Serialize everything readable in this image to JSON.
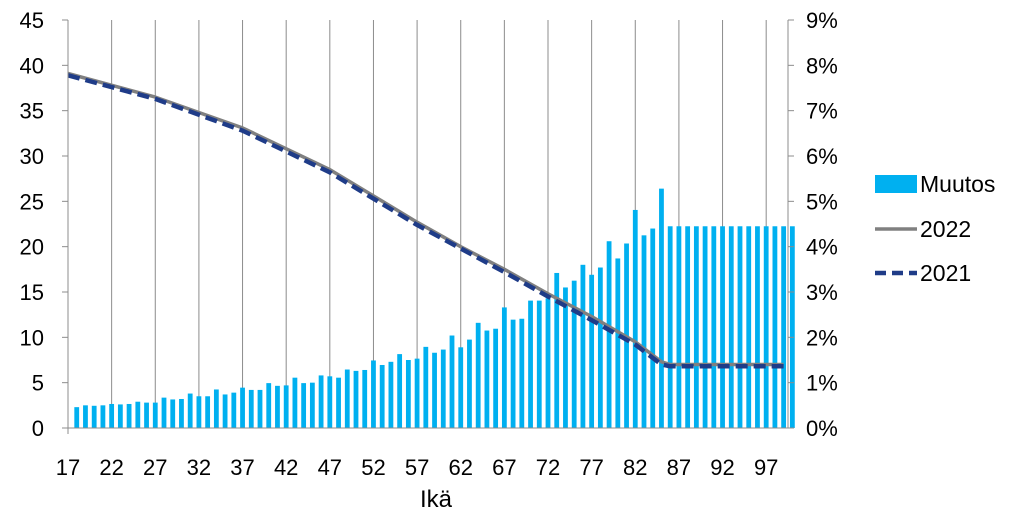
{
  "chart_data": {
    "type": "bar",
    "xlabel": "Ikä",
    "x_start": 17,
    "x_end": 99,
    "x_tick_labels": [
      "17",
      "22",
      "27",
      "32",
      "37",
      "42",
      "47",
      "52",
      "57",
      "62",
      "67",
      "72",
      "77",
      "82",
      "87",
      "92",
      "97"
    ],
    "y_left": {
      "min": 0,
      "max": 45,
      "tick_labels": [
        "0",
        "5",
        "10",
        "15",
        "20",
        "25",
        "30",
        "35",
        "40",
        "45"
      ]
    },
    "y_right": {
      "min": 0,
      "max": 9,
      "tick_labels": [
        "0%",
        "1%",
        "2%",
        "3%",
        "4%",
        "5%",
        "6%",
        "7%",
        "8%",
        "9%"
      ]
    },
    "grid": "vertical",
    "legend_position": "right",
    "colors": {
      "bars": "#00B0F0",
      "line_2022": "#808080",
      "line_2021": "#1F3C88"
    },
    "series": [
      {
        "name": "Muutos",
        "kind": "bar",
        "axis": "right",
        "values": [
          0.46,
          0.5,
          0.49,
          0.5,
          0.53,
          0.52,
          0.53,
          0.58,
          0.56,
          0.56,
          0.67,
          0.63,
          0.64,
          0.76,
          0.7,
          0.7,
          0.85,
          0.74,
          0.78,
          0.89,
          0.84,
          0.84,
          0.99,
          0.93,
          0.94,
          1.11,
          0.99,
          1.0,
          1.16,
          1.14,
          1.11,
          1.29,
          1.26,
          1.28,
          1.49,
          1.39,
          1.46,
          1.63,
          1.5,
          1.53,
          1.79,
          1.66,
          1.73,
          2.04,
          1.78,
          1.95,
          2.32,
          2.15,
          2.19,
          2.66,
          2.39,
          2.41,
          2.81,
          2.81,
          2.86,
          3.42,
          3.1,
          3.25,
          3.6,
          3.38,
          3.54,
          4.12,
          3.74,
          4.07,
          4.81,
          4.25,
          4.4,
          5.28,
          4.45,
          4.45,
          4.45,
          4.45,
          4.45,
          4.45,
          4.45,
          4.45,
          4.45,
          4.45,
          4.45,
          4.45,
          4.45,
          4.45,
          4.45
        ]
      },
      {
        "name": "2022",
        "kind": "line",
        "axis": "left",
        "points": [
          [
            17,
            39.1
          ],
          [
            27,
            36.5
          ],
          [
            37,
            33.1
          ],
          [
            47,
            28.5
          ],
          [
            57,
            22.7
          ],
          [
            62,
            20.0
          ],
          [
            67,
            17.5
          ],
          [
            72,
            14.8
          ],
          [
            77,
            12.3
          ],
          [
            82,
            9.5
          ],
          [
            85,
            7.3
          ],
          [
            86,
            7.0
          ],
          [
            99,
            7.0
          ]
        ]
      },
      {
        "name": "2021",
        "kind": "line",
        "axis": "left",
        "points": [
          [
            17,
            38.9
          ],
          [
            27,
            36.3
          ],
          [
            37,
            32.8
          ],
          [
            47,
            28.2
          ],
          [
            57,
            22.4
          ],
          [
            62,
            19.8
          ],
          [
            67,
            17.2
          ],
          [
            72,
            14.5
          ],
          [
            77,
            11.9
          ],
          [
            82,
            9.2
          ],
          [
            85,
            7.0
          ],
          [
            86,
            6.8
          ],
          [
            99,
            6.8
          ]
        ]
      }
    ]
  }
}
